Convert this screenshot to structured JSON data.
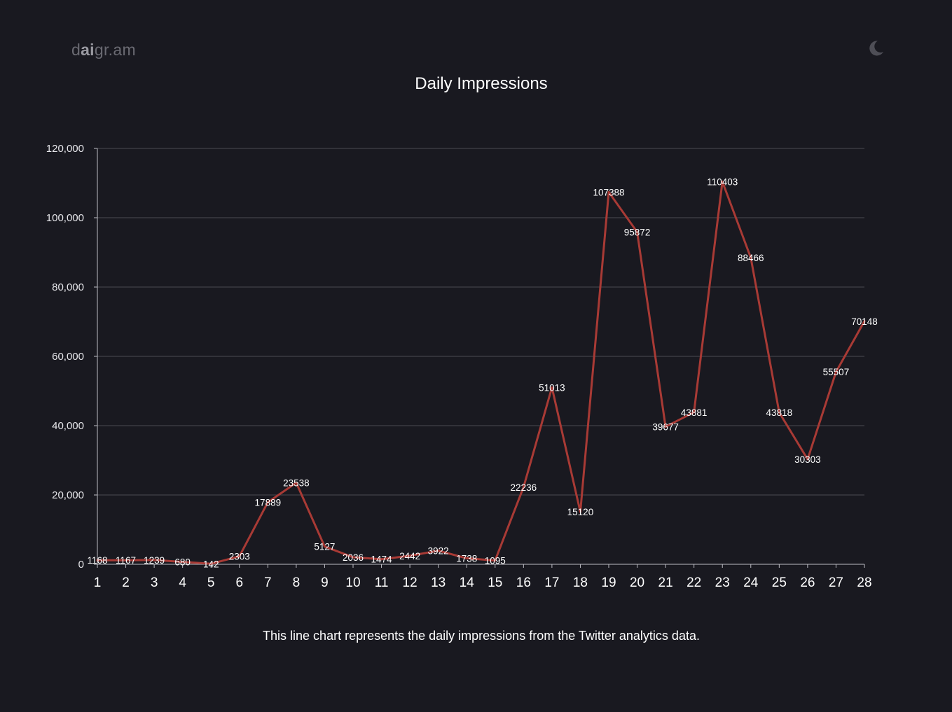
{
  "header": {
    "brand_prefix": "d",
    "brand_accent": "ai",
    "brand_suffix": "gr.am",
    "theme_icon": "moon-icon"
  },
  "caption": "This line chart represents the daily impressions from the Twitter analytics data.",
  "colors": {
    "background": "#191920",
    "line": "#a83a35",
    "grid": "#4a4a52"
  },
  "chart_data": {
    "type": "line",
    "title": "Daily Impressions",
    "xlabel": "",
    "ylabel": "",
    "x": [
      1,
      2,
      3,
      4,
      5,
      6,
      7,
      8,
      9,
      10,
      11,
      12,
      13,
      14,
      15,
      16,
      17,
      18,
      19,
      20,
      21,
      22,
      23,
      24,
      25,
      26,
      27,
      28
    ],
    "x_tick_labels": [
      "1",
      "2",
      "3",
      "4",
      "5",
      "6",
      "7",
      "8",
      "9",
      "10",
      "11",
      "12",
      "13",
      "14",
      "15",
      "16",
      "17",
      "18",
      "19",
      "20",
      "21",
      "22",
      "23",
      "24",
      "25",
      "26",
      "27",
      "28"
    ],
    "series": [
      {
        "values": [
          1168,
          1167,
          1239,
          680,
          142,
          2303,
          17889,
          23538,
          5127,
          2036,
          1474,
          2442,
          3922,
          1738,
          1095,
          22236,
          51013,
          15120,
          107388,
          95872,
          39677,
          43881,
          110403,
          88466,
          43818,
          30303,
          55507,
          70148
        ],
        "data_labels": [
          "1168",
          "1167",
          "1239",
          "680",
          "142",
          "2303",
          "17889",
          "23538",
          "5127",
          "2036",
          "1474",
          "2442",
          "3922",
          "1738",
          "1095",
          "22236",
          "51013",
          "15120",
          "107388",
          "95872",
          "39677",
          "43881",
          "110403",
          "88466",
          "43818",
          "30303",
          "55507",
          "70148"
        ]
      }
    ],
    "ylim": [
      0,
      120000
    ],
    "y_ticks": [
      0,
      20000,
      40000,
      60000,
      80000,
      100000,
      120000
    ],
    "y_tick_labels": [
      "0",
      "20,000",
      "40,000",
      "60,000",
      "80,000",
      "100,000",
      "120,000"
    ],
    "grid": true,
    "legend": "none"
  }
}
